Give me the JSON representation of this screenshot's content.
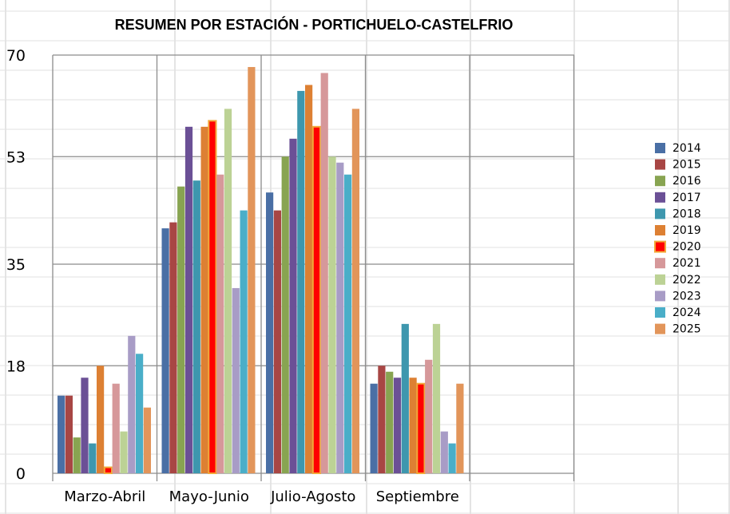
{
  "chart_data": {
    "type": "bar",
    "title": "RESUMEN POR ESTACIÓN - PORTICHUELO-CASTELFRIO",
    "xlabel": "",
    "ylabel": "",
    "ylim": [
      0,
      70
    ],
    "yticks": [
      "0",
      "18",
      "35",
      "53",
      "70"
    ],
    "grid": true,
    "legend_position": "right",
    "categories": [
      "Marzo-Abril",
      "Mayo-Junio",
      "Julio-Agosto",
      "Septiembre"
    ],
    "series": [
      {
        "name": "2014",
        "color": "#4a6fa5",
        "values": [
          13,
          41,
          47,
          15
        ]
      },
      {
        "name": "2015",
        "color": "#a84644",
        "values": [
          13,
          42,
          44,
          18
        ]
      },
      {
        "name": "2016",
        "color": "#88a451",
        "values": [
          6,
          48,
          53,
          17
        ]
      },
      {
        "name": "2017",
        "color": "#6b5096",
        "values": [
          16,
          58,
          56,
          16
        ]
      },
      {
        "name": "2018",
        "color": "#3e97ae",
        "values": [
          5,
          49,
          64,
          25
        ]
      },
      {
        "name": "2019",
        "color": "#dd8033",
        "values": [
          18,
          58,
          65,
          16
        ]
      },
      {
        "name": "2020",
        "color": "#ff0000",
        "border": "#f2a93a",
        "values": [
          1,
          59,
          58,
          15
        ]
      },
      {
        "name": "2021",
        "color": "#d6989a",
        "values": [
          15,
          50,
          67,
          19
        ]
      },
      {
        "name": "2022",
        "color": "#bcd295",
        "values": [
          7,
          61,
          53,
          25
        ]
      },
      {
        "name": "2023",
        "color": "#a89cc6",
        "values": [
          23,
          31,
          52,
          7
        ]
      },
      {
        "name": "2024",
        "color": "#4aaec8",
        "values": [
          20,
          44,
          50,
          5
        ]
      },
      {
        "name": "2025",
        "color": "#e2955a",
        "values": [
          11,
          68,
          61,
          15
        ]
      }
    ]
  }
}
